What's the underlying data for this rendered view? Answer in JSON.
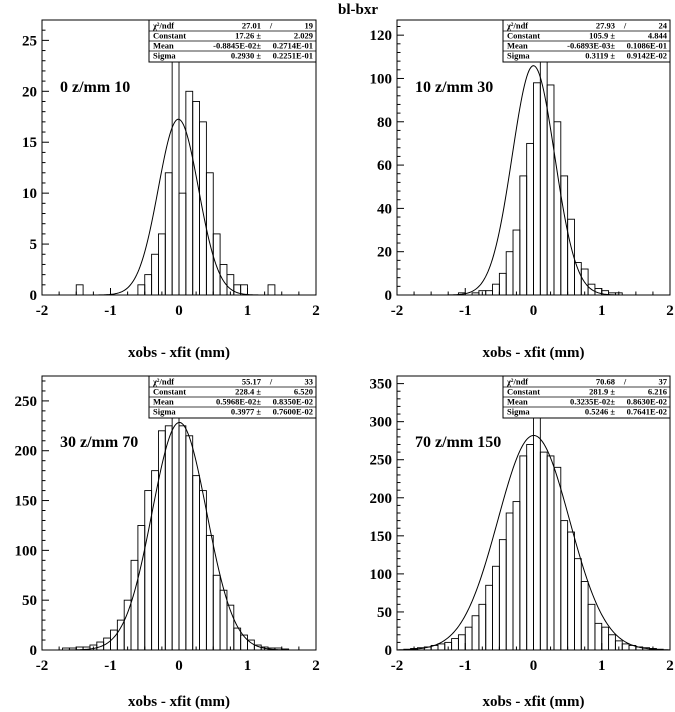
{
  "page_title": "bl-bxr",
  "chart_data": [
    {
      "type": "histogram",
      "range_label": "0  z/mm  10",
      "xlabel": "xobs - xfit (mm)",
      "ylabel": "",
      "xlim": [
        -2,
        2
      ],
      "ylim": [
        0,
        27
      ],
      "x_ticks": [
        "-2",
        "-1",
        "0",
        "1",
        "2"
      ],
      "y_ticks": [
        "0",
        "5",
        "10",
        "15",
        "20",
        "25"
      ],
      "y_tick_values": [
        0,
        5,
        10,
        15,
        20,
        25
      ],
      "bin_edges_start": -2,
      "bin_width": 0.1,
      "counts": [
        0,
        0,
        0,
        0,
        0,
        1,
        0,
        0,
        0,
        0,
        0,
        0,
        0,
        0,
        1,
        2,
        4,
        6,
        12,
        25,
        10,
        20,
        19,
        17,
        12,
        6,
        3,
        2,
        1,
        1,
        0,
        0,
        0,
        1,
        0,
        0,
        0,
        0,
        0,
        0
      ],
      "stats": [
        {
          "label": "χ²/ndf",
          "value1": "27.01",
          "sep": "/",
          "value2": "19"
        },
        {
          "label": "Constant",
          "value1": "17.26 ±",
          "value2": "2.029"
        },
        {
          "label": "Mean",
          "value1": "-0.8845E-02±",
          "value2": "0.2714E-01"
        },
        {
          "label": "Sigma",
          "value1": "0.2930 ±",
          "value2": "0.2251E-01"
        }
      ],
      "fit": {
        "function": "gaus",
        "constant": 17.26,
        "mean": -0.008845,
        "sigma": 0.293
      }
    },
    {
      "type": "histogram",
      "range_label": "10  z/mm  30",
      "xlabel": "xobs - xfit (mm)",
      "ylabel": "",
      "xlim": [
        -2,
        2
      ],
      "ylim": [
        0,
        127
      ],
      "x_ticks": [
        "-2",
        "-1",
        "0",
        "1",
        "2"
      ],
      "y_ticks": [
        "0",
        "20",
        "40",
        "60",
        "80",
        "100",
        "120"
      ],
      "y_tick_values": [
        0,
        20,
        40,
        60,
        80,
        100,
        120
      ],
      "bin_edges_start": -2,
      "bin_width": 0.1,
      "counts": [
        0,
        0,
        0,
        0,
        0,
        0,
        0,
        0,
        0,
        1,
        0,
        1,
        2,
        2,
        5,
        10,
        20,
        30,
        55,
        70,
        98,
        112,
        97,
        80,
        55,
        35,
        15,
        12,
        5,
        3,
        2,
        1,
        1,
        0,
        0,
        0,
        0,
        0,
        0,
        0
      ],
      "stats": [
        {
          "label": "χ²/ndf",
          "value1": "27.93",
          "sep": "/",
          "value2": "24"
        },
        {
          "label": "Constant",
          "value1": "105.9 ±",
          "value2": "4.844"
        },
        {
          "label": "Mean",
          "value1": "-0.6893E-03±",
          "value2": "0.1086E-01"
        },
        {
          "label": "Sigma",
          "value1": "0.3119 ±",
          "value2": "0.9142E-02"
        }
      ],
      "fit": {
        "function": "gaus",
        "constant": 105.9,
        "mean": -0.0006893,
        "sigma": 0.3119
      }
    },
    {
      "type": "histogram",
      "range_label": "30  z/mm  70",
      "xlabel": "xobs - xfit (mm)",
      "ylabel": "",
      "xlim": [
        -2,
        2
      ],
      "ylim": [
        0,
        275
      ],
      "x_ticks": [
        "-2",
        "-1",
        "0",
        "1",
        "2"
      ],
      "y_ticks": [
        "0",
        "50",
        "100",
        "150",
        "200",
        "250"
      ],
      "y_tick_values": [
        0,
        50,
        100,
        150,
        200,
        250
      ],
      "bin_edges_start": -2,
      "bin_width": 0.1,
      "counts": [
        0,
        0,
        0,
        2,
        2,
        3,
        3,
        5,
        8,
        12,
        20,
        30,
        50,
        90,
        125,
        160,
        180,
        220,
        225,
        255,
        225,
        215,
        175,
        160,
        115,
        75,
        60,
        45,
        22,
        15,
        10,
        5,
        3,
        2,
        2,
        1,
        0,
        0,
        0,
        0
      ],
      "stats": [
        {
          "label": "χ²/ndf",
          "value1": "55.17",
          "sep": "/",
          "value2": "33"
        },
        {
          "label": "Constant",
          "value1": "228.4 ±",
          "value2": "6.520"
        },
        {
          "label": "Mean",
          "value1": "0.5968E-02±",
          "value2": "0.8350E-02"
        },
        {
          "label": "Sigma",
          "value1": "0.3977 ±",
          "value2": "0.7600E-02"
        }
      ],
      "fit": {
        "function": "gaus",
        "constant": 228.4,
        "mean": 0.005968,
        "sigma": 0.3977
      }
    },
    {
      "type": "histogram",
      "range_label": "70  z/mm  150",
      "xlabel": "xobs - xfit (mm)",
      "ylabel": "",
      "xlim": [
        -2,
        2
      ],
      "ylim": [
        0,
        360
      ],
      "x_ticks": [
        "-2",
        "-1",
        "0",
        "1",
        "2"
      ],
      "y_ticks": [
        "0",
        "50",
        "100",
        "150",
        "200",
        "250",
        "300",
        "350"
      ],
      "y_tick_values": [
        0,
        50,
        100,
        150,
        200,
        250,
        300,
        350
      ],
      "bin_edges_start": -2,
      "bin_width": 0.1,
      "counts": [
        0,
        1,
        2,
        3,
        4,
        6,
        8,
        10,
        15,
        20,
        30,
        45,
        60,
        85,
        110,
        145,
        180,
        195,
        255,
        270,
        325,
        260,
        255,
        240,
        170,
        155,
        120,
        90,
        60,
        35,
        30,
        20,
        12,
        8,
        6,
        4,
        3,
        2,
        1,
        0
      ],
      "stats": [
        {
          "label": "χ²/ndf",
          "value1": "70.68",
          "sep": "/",
          "value2": "37"
        },
        {
          "label": "Constant",
          "value1": "281.9 ±",
          "value2": "6.216"
        },
        {
          "label": "Mean",
          "value1": "0.3235E-02±",
          "value2": "0.8630E-02"
        },
        {
          "label": "Sigma",
          "value1": "0.5246 ±",
          "value2": "0.7641E-02"
        }
      ],
      "fit": {
        "function": "gaus",
        "constant": 281.9,
        "mean": 0.003235,
        "sigma": 0.5246
      }
    }
  ]
}
